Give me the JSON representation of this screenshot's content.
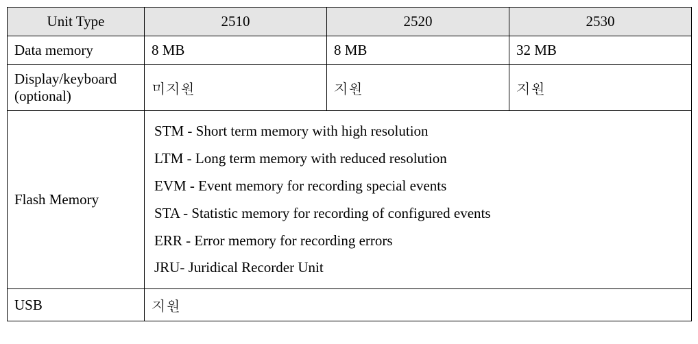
{
  "table": {
    "header": {
      "col0": "Unit Type",
      "col1": "2510",
      "col2": "2520",
      "col3": "2530"
    },
    "rows": {
      "data_memory": {
        "label": "Data memory",
        "c1": "8 MB",
        "c2": "8 MB",
        "c3": "32 MB"
      },
      "display_keyboard": {
        "label_line1": "Display/keyboard",
        "label_line2": "(optional)",
        "c1": "미지원",
        "c2": "지원",
        "c3": "지원"
      },
      "flash_memory": {
        "label": "Flash Memory",
        "lines": {
          "l0": "STM - Short term memory with high resolution",
          "l1": "LTM - Long term memory with reduced resolution",
          "l2": "EVM - Event memory for recording special events",
          "l3": "STA - Statistic memory for recording of configured events",
          "l4": "ERR - Error memory for recording errors",
          "l5": "JRU- Juridical Recorder Unit"
        }
      },
      "usb": {
        "label": "USB",
        "value": "지원"
      }
    }
  }
}
